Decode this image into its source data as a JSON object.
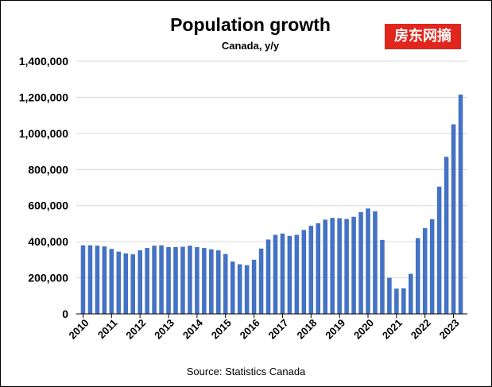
{
  "chart_data": {
    "type": "bar",
    "title": "Population growth",
    "subtitle": "Canada, y/y",
    "source": "Source: Statistics Canada",
    "watermark": "房东网摘",
    "color": "#4472c4",
    "ylim": [
      0,
      1400000
    ],
    "y_ticks": [
      "0",
      "200,000",
      "400,000",
      "600,000",
      "800,000",
      "1,000,000",
      "1,200,000",
      "1,400,000"
    ],
    "x_ticks": [
      "2010",
      "2011",
      "2012",
      "2013",
      "2014",
      "2015",
      "2016",
      "2017",
      "2018",
      "2019",
      "2020",
      "2021",
      "2022",
      "2023"
    ],
    "grid": true,
    "categories": [
      "2010 Q1",
      "2010 Q2",
      "2010 Q3",
      "2010 Q4",
      "2011 Q1",
      "2011 Q2",
      "2011 Q3",
      "2011 Q4",
      "2012 Q1",
      "2012 Q2",
      "2012 Q3",
      "2012 Q4",
      "2013 Q1",
      "2013 Q2",
      "2013 Q3",
      "2013 Q4",
      "2014 Q1",
      "2014 Q2",
      "2014 Q3",
      "2014 Q4",
      "2015 Q1",
      "2015 Q2",
      "2015 Q3",
      "2015 Q4",
      "2016 Q1",
      "2016 Q2",
      "2016 Q3",
      "2016 Q4",
      "2017 Q1",
      "2017 Q2",
      "2017 Q3",
      "2017 Q4",
      "2018 Q1",
      "2018 Q2",
      "2018 Q3",
      "2018 Q4",
      "2019 Q1",
      "2019 Q2",
      "2019 Q3",
      "2019 Q4",
      "2020 Q1",
      "2020 Q2",
      "2020 Q3",
      "2020 Q4",
      "2021 Q1",
      "2021 Q2",
      "2021 Q3",
      "2021 Q4",
      "2022 Q1",
      "2022 Q2",
      "2022 Q3",
      "2022 Q4",
      "2023 Q1",
      "2023 Q2"
    ],
    "values": [
      380000,
      380000,
      378000,
      374000,
      360000,
      345000,
      335000,
      330000,
      352000,
      365000,
      378000,
      380000,
      370000,
      370000,
      372000,
      378000,
      370000,
      365000,
      358000,
      352000,
      332000,
      290000,
      275000,
      270000,
      300000,
      362000,
      412000,
      438000,
      445000,
      432000,
      438000,
      465000,
      488000,
      502000,
      522000,
      532000,
      530000,
      526000,
      538000,
      564000,
      584000,
      568000,
      410000,
      200000,
      140000,
      142000,
      222000,
      420000,
      475000,
      525000,
      705000,
      870000,
      1050000,
      1215000
    ]
  }
}
